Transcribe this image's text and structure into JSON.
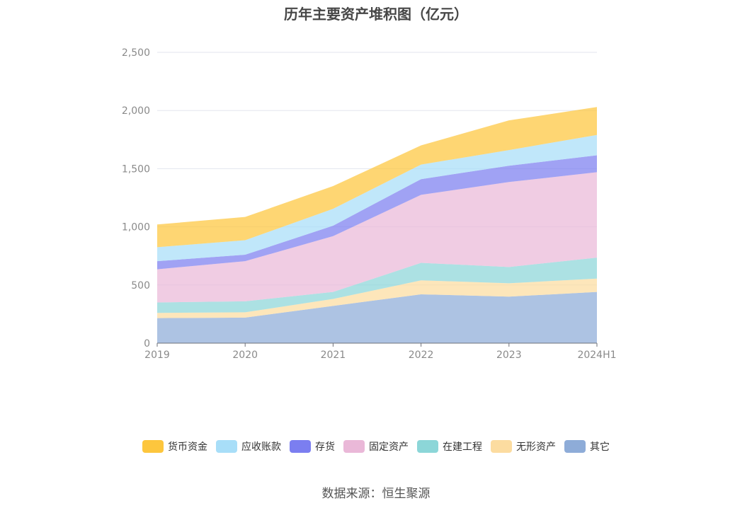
{
  "chart_data": {
    "type": "area",
    "stacked": true,
    "title": "历年主要资产堆积图（亿元）",
    "categories": [
      "2019",
      "2020",
      "2021",
      "2022",
      "2023",
      "2024H1"
    ],
    "ylim": [
      0,
      2500
    ],
    "yticks": [
      "0",
      "500",
      "1,000",
      "1,500",
      "2,000",
      "2,500"
    ],
    "ytick_values": [
      0,
      500,
      1000,
      1500,
      2000,
      2500
    ],
    "grid": true,
    "legend_position": "bottom",
    "series": [
      {
        "name": "其它",
        "color": "#8eacd8",
        "values": [
          215,
          220,
          320,
          420,
          400,
          440
        ]
      },
      {
        "name": "无形资产",
        "color": "#fcdca0",
        "values": [
          45,
          45,
          60,
          120,
          115,
          115
        ]
      },
      {
        "name": "在建工程",
        "color": "#8cd6d8",
        "values": [
          90,
          95,
          60,
          150,
          140,
          180
        ]
      },
      {
        "name": "固定资产",
        "color": "#eab8d8",
        "values": [
          285,
          345,
          480,
          585,
          730,
          735
        ]
      },
      {
        "name": "存货",
        "color": "#7b7ef0",
        "values": [
          70,
          55,
          90,
          135,
          140,
          145
        ]
      },
      {
        "name": "应收账款",
        "color": "#a8def8",
        "values": [
          120,
          125,
          145,
          125,
          135,
          175
        ]
      },
      {
        "name": "货币资金",
        "color": "#fdc63d",
        "values": [
          195,
          200,
          195,
          165,
          255,
          240
        ]
      }
    ]
  },
  "legend_order": [
    "货币资金",
    "应收账款",
    "存货",
    "固定资产",
    "在建工程",
    "无形资产",
    "其它"
  ],
  "source": "数据来源：恒生聚源"
}
